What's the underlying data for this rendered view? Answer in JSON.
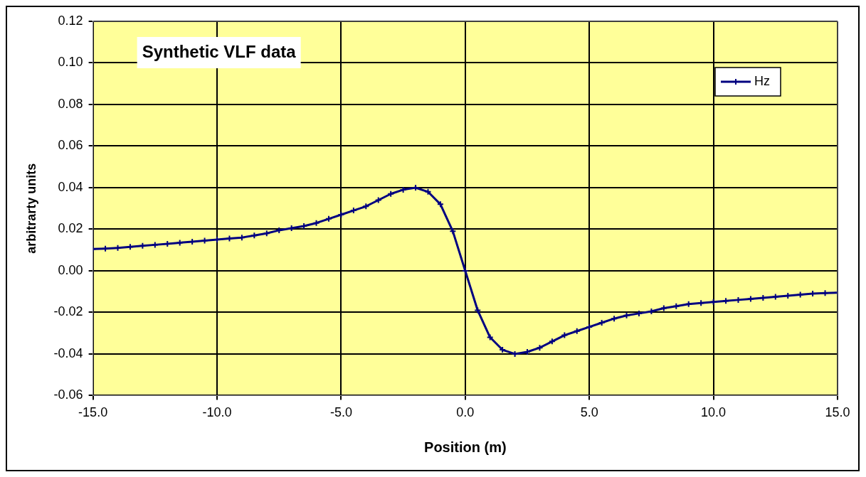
{
  "chart_data": {
    "type": "line",
    "title": "Synthetic VLF data",
    "xlabel": "Position (m)",
    "ylabel": "arbitrarty units",
    "x": [
      -15,
      -14.5,
      -14,
      -13.5,
      -13,
      -12.5,
      -12,
      -11.5,
      -11,
      -10.5,
      -10,
      -9.5,
      -9,
      -8.5,
      -8,
      -7.5,
      -7,
      -6.5,
      -6,
      -5.5,
      -5,
      -4.5,
      -4,
      -3.5,
      -3,
      -2.5,
      -2,
      -1.5,
      -1,
      -0.5,
      0,
      0.5,
      1,
      1.5,
      2,
      2.5,
      3,
      3.5,
      4,
      4.5,
      5,
      5.5,
      6,
      6.5,
      7,
      7.5,
      8,
      8.5,
      9,
      9.5,
      10,
      10.5,
      11,
      11.5,
      12,
      12.5,
      13,
      13.5,
      14,
      14.5,
      15
    ],
    "series": [
      {
        "name": "Hz",
        "color": "#000080",
        "values": [
          0.0105,
          0.0107,
          0.011,
          0.0115,
          0.012,
          0.0125,
          0.013,
          0.0135,
          0.014,
          0.0145,
          0.015,
          0.0155,
          0.016,
          0.017,
          0.018,
          0.0195,
          0.0205,
          0.0215,
          0.023,
          0.025,
          0.027,
          0.029,
          0.031,
          0.034,
          0.037,
          0.039,
          0.04,
          0.038,
          0.032,
          0.019,
          0,
          -0.019,
          -0.032,
          -0.038,
          -0.04,
          -0.039,
          -0.037,
          -0.034,
          -0.031,
          -0.029,
          -0.027,
          -0.025,
          -0.023,
          -0.0215,
          -0.0205,
          -0.0195,
          -0.018,
          -0.017,
          -0.016,
          -0.0155,
          -0.015,
          -0.0145,
          -0.014,
          -0.0135,
          -0.013,
          -0.0125,
          -0.012,
          -0.0115,
          -0.011,
          -0.0107,
          -0.0105
        ]
      }
    ],
    "xlim": [
      -15,
      15
    ],
    "xticks": [
      {
        "value": -15,
        "label": "-15.0"
      },
      {
        "value": -10,
        "label": "-10.0"
      },
      {
        "value": -5,
        "label": "-5.0"
      },
      {
        "value": 0,
        "label": "0.0"
      },
      {
        "value": 5,
        "label": "5.0"
      },
      {
        "value": 10,
        "label": "10.0"
      },
      {
        "value": 15,
        "label": "15.0"
      }
    ],
    "ylim": [
      -0.06,
      0.12
    ],
    "yticks": [
      {
        "value": -0.06,
        "label": "-0.06"
      },
      {
        "value": -0.04,
        "label": "-0.04"
      },
      {
        "value": -0.02,
        "label": "-0.02"
      },
      {
        "value": 0,
        "label": "0.00"
      },
      {
        "value": 0.02,
        "label": "0.02"
      },
      {
        "value": 0.04,
        "label": "0.04"
      },
      {
        "value": 0.06,
        "label": "0.06"
      },
      {
        "value": 0.08,
        "label": "0.08"
      },
      {
        "value": 0.1,
        "label": "0.10"
      },
      {
        "value": 0.12,
        "label": "0.12"
      }
    ],
    "grid": true,
    "legend": "top right",
    "marker": "cross",
    "line_style": "solid"
  }
}
